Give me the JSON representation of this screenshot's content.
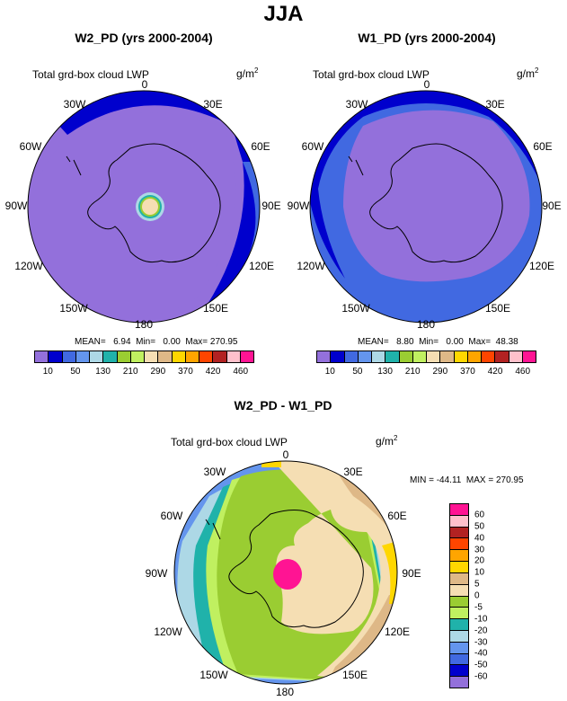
{
  "figure": {
    "title": "JJA"
  },
  "panels": {
    "left": {
      "title": "W2_PD (yrs 2000-2004)",
      "variable": "Total grd-box cloud LWP",
      "units_base": "g/m",
      "units_exp": "2",
      "stats": "MEAN=   6.94  Min=   0.00  Max= 270.95"
    },
    "right": {
      "title": "W1_PD (yrs 2000-2004)",
      "variable": "Total grd-box cloud LWP",
      "units_base": "g/m",
      "units_exp": "2",
      "stats": "MEAN=   8.80  Min=   0.00  Max=  48.38"
    },
    "bottom": {
      "title": "W2_PD - W1_PD",
      "variable": "Total grd-box cloud LWP",
      "units_base": "g/m",
      "units_exp": "2",
      "stats": "MIN = -44.11  MAX = 270.95"
    }
  },
  "longitude_labels": {
    "lon_0": "0",
    "lon_30e": "30E",
    "lon_60e": "60E",
    "lon_90e": "90E",
    "lon_120e": "120E",
    "lon_150e": "150E",
    "lon_180": "180",
    "lon_150w": "150W",
    "lon_120w": "120W",
    "lon_90w": "90W",
    "lon_60w": "60W",
    "lon_30w": "30W"
  },
  "lwp_colorbar": {
    "colors": [
      "#9370db",
      "#0000cd",
      "#4169e1",
      "#6495ed",
      "#add8e6",
      "#20b2aa",
      "#9acd32",
      "#c0f060",
      "#f5deb3",
      "#deb887",
      "#ffd700",
      "#ffa500",
      "#ff4500",
      "#b22222",
      "#ffc0cb",
      "#ff1493"
    ],
    "tick_labels": [
      "10",
      "50",
      "130",
      "210",
      "290",
      "370",
      "420",
      "460"
    ]
  },
  "diff_colorbar": {
    "colors": [
      "#ff1493",
      "#ffc0cb",
      "#b22222",
      "#ff4500",
      "#ffa500",
      "#ffd700",
      "#deb887",
      "#f5deb3",
      "#9acd32",
      "#c0f060",
      "#20b2aa",
      "#add8e6",
      "#6495ed",
      "#4169e1",
      "#0000cd",
      "#9370db"
    ],
    "tick_labels": [
      "60",
      "50",
      "40",
      "30",
      "20",
      "10",
      "5",
      "0",
      "-5",
      "-10",
      "-20",
      "-30",
      "-40",
      "-50",
      "-60"
    ]
  },
  "map_colors": {
    "purple": "#9370db",
    "darkblue": "#0000cd",
    "royalblue": "#4169e1",
    "cornflower": "#6495ed",
    "lightblue": "#add8e6",
    "teal": "#20b2aa",
    "green": "#9acd32",
    "lightgreen": "#c0f060",
    "wheat": "#f5deb3",
    "tan": "#deb887",
    "gold": "#ffd700",
    "pink": "#ff1493"
  }
}
